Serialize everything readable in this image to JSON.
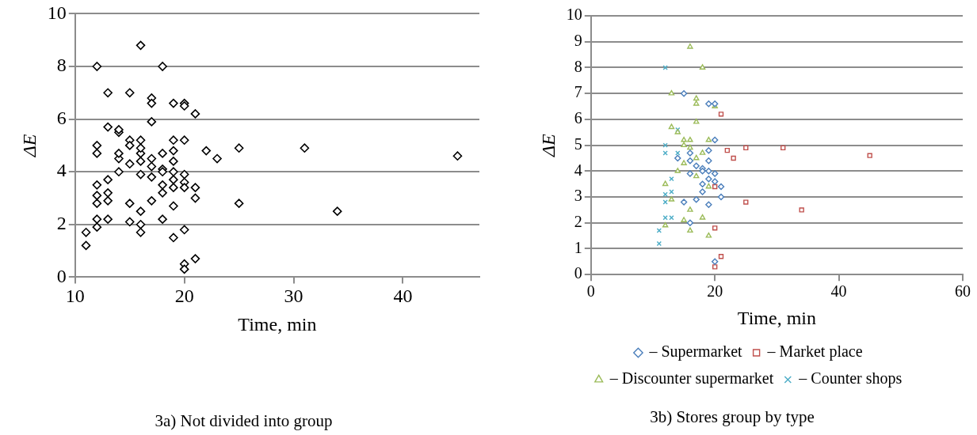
{
  "chart_data": [
    {
      "type": "scatter",
      "xlabel": "Time, min",
      "ylabel": "ΔE",
      "annotations": [
        "3a) Not divided into group"
      ],
      "xlim": [
        10,
        47
      ],
      "xticks": [
        10,
        20,
        30,
        40
      ],
      "ylim": [
        0,
        10
      ],
      "yticks": [
        0,
        2,
        4,
        6,
        8,
        10
      ],
      "grid": "y",
      "legend": false,
      "marker": "diamond",
      "series": [
        {
          "color": "#000000",
          "x": [
            15,
            19,
            20,
            20,
            19,
            16,
            14,
            16,
            19,
            17,
            18,
            18,
            16,
            19,
            20,
            19,
            20,
            18,
            21,
            18,
            17,
            21,
            15,
            19,
            16,
            20,
            21,
            22,
            23,
            25,
            31,
            45,
            20,
            25,
            34,
            20,
            21,
            20,
            16,
            18,
            13,
            17,
            17,
            20,
            17,
            13,
            14,
            15,
            16,
            19,
            15,
            16,
            18,
            17,
            15,
            14,
            17,
            12,
            19,
            13,
            16,
            15,
            18,
            12,
            16,
            19,
            12,
            14,
            12,
            12,
            14,
            13,
            13,
            12,
            12,
            12,
            13,
            11,
            11
          ],
          "values": [
            7,
            6.6,
            6.6,
            5.2,
            4.8,
            4.7,
            4.5,
            4.4,
            4.4,
            4.2,
            4.1,
            4.0,
            3.9,
            4.0,
            3.9,
            3.7,
            3.6,
            3.5,
            3.4,
            3.2,
            2.9,
            3.0,
            2.8,
            2.7,
            2.0,
            0.5,
            6.2,
            4.8,
            4.5,
            4.9,
            4.9,
            4.6,
            3.4,
            2.8,
            2.5,
            1.8,
            0.7,
            0.3,
            8.8,
            8.0,
            7.0,
            6.8,
            6.6,
            6.5,
            5.9,
            5.7,
            5.5,
            5.2,
            5.2,
            5.2,
            5.0,
            4.9,
            4.7,
            4.5,
            4.3,
            4.0,
            3.8,
            3.5,
            3.4,
            2.9,
            2.5,
            2.1,
            2.2,
            1.9,
            1.7,
            1.5,
            8.0,
            5.6,
            5.0,
            4.7,
            4.7,
            3.7,
            3.2,
            3.1,
            2.8,
            2.2,
            2.2,
            1.7,
            1.2
          ]
        }
      ]
    },
    {
      "type": "scatter",
      "xlabel": "Time, min",
      "ylabel": "ΔE",
      "annotations": [
        "3b) Stores group by type"
      ],
      "xlim": [
        0,
        60
      ],
      "xticks": [
        0,
        20,
        40,
        60
      ],
      "ylim": [
        0,
        10
      ],
      "yticks": [
        0,
        1,
        2,
        3,
        4,
        5,
        6,
        7,
        8,
        9,
        10
      ],
      "grid": "y",
      "legend": "bottom",
      "series": [
        {
          "name": "– Supermarket",
          "color": "#4a7ebb",
          "marker": "diamond",
          "x": [
            15,
            19,
            20,
            20,
            19,
            16,
            14,
            16,
            19,
            17,
            18,
            18,
            16,
            19,
            20,
            19,
            20,
            18,
            21,
            18,
            17,
            21,
            15,
            19,
            16,
            20
          ],
          "values": [
            7,
            6.6,
            6.6,
            5.2,
            4.8,
            4.7,
            4.5,
            4.4,
            4.4,
            4.2,
            4.1,
            4.0,
            3.9,
            4.0,
            3.9,
            3.7,
            3.6,
            3.5,
            3.4,
            3.2,
            2.9,
            3.0,
            2.8,
            2.7,
            2.0,
            0.5
          ]
        },
        {
          "name": "– Market place",
          "color": "#c0504d",
          "marker": "square",
          "x": [
            21,
            22,
            23,
            25,
            31,
            45,
            20,
            25,
            34,
            20,
            21,
            20
          ],
          "values": [
            6.2,
            4.8,
            4.5,
            4.9,
            4.9,
            4.6,
            3.4,
            2.8,
            2.5,
            1.8,
            0.7,
            0.3
          ]
        },
        {
          "name": "– Discounter supermarket",
          "color": "#9bbb59",
          "marker": "triangle",
          "x": [
            16,
            18,
            13,
            17,
            17,
            20,
            17,
            13,
            14,
            15,
            16,
            19,
            15,
            16,
            18,
            17,
            15,
            14,
            17,
            12,
            19,
            13,
            16,
            15,
            18,
            12,
            16,
            19
          ],
          "values": [
            8.8,
            8.0,
            7.0,
            6.8,
            6.6,
            6.5,
            5.9,
            5.7,
            5.5,
            5.2,
            5.2,
            5.2,
            5.0,
            4.9,
            4.7,
            4.5,
            4.3,
            4.0,
            3.8,
            3.5,
            3.4,
            2.9,
            2.5,
            2.1,
            2.2,
            1.9,
            1.7,
            1.5
          ]
        },
        {
          "name": "– Counter shops",
          "color": "#4bacc6",
          "marker": "cross",
          "x": [
            12,
            14,
            12,
            12,
            14,
            13,
            13,
            12,
            12,
            12,
            13,
            11,
            11
          ],
          "values": [
            8.0,
            5.6,
            5.0,
            4.7,
            4.7,
            3.7,
            3.2,
            3.1,
            2.8,
            2.2,
            2.2,
            1.7,
            1.2
          ]
        }
      ]
    }
  ]
}
